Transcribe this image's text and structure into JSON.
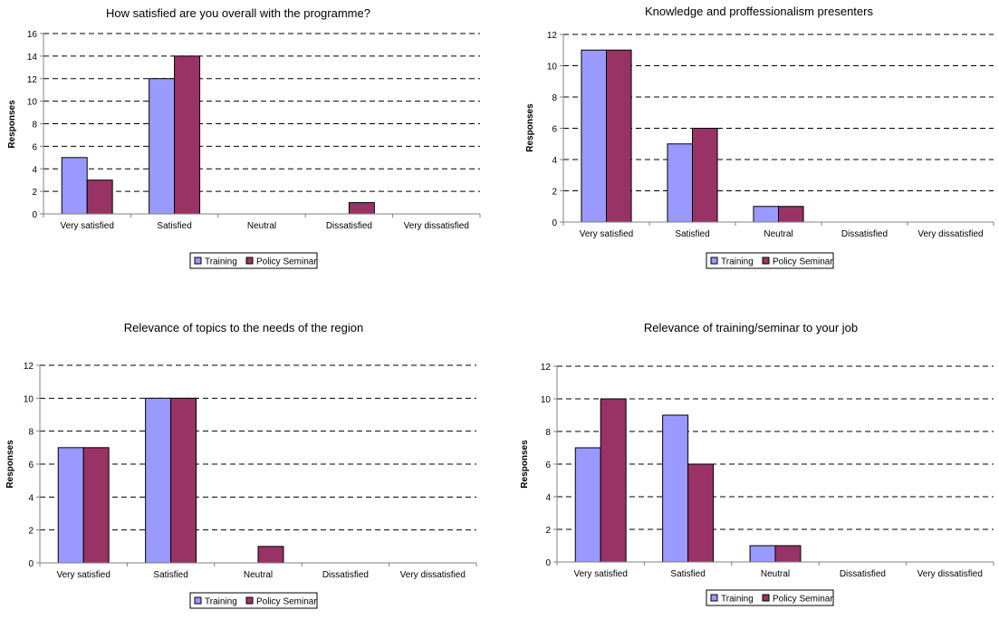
{
  "colors": {
    "training": "#9999ff",
    "policy_seminar": "#993366",
    "grid": "#000000",
    "axis": "#808080"
  },
  "chart_data": [
    {
      "type": "bar",
      "title": "How satisfied are you overall with the programme?",
      "ylabel": "Responses",
      "xlabel": "",
      "categories": [
        "Very satisfied",
        "Satisfied",
        "Neutral",
        "Dissatisfied",
        "Very dissatisfied"
      ],
      "ylim": [
        0,
        16
      ],
      "yticks": [
        0,
        2,
        4,
        6,
        8,
        10,
        12,
        14,
        16
      ],
      "grid": true,
      "legend": "bottom",
      "series": [
        {
          "name": "Training",
          "values": [
            5,
            12,
            0,
            0,
            0
          ]
        },
        {
          "name": "Policy Seminar",
          "values": [
            3,
            14,
            0,
            1,
            0
          ]
        }
      ]
    },
    {
      "type": "bar",
      "title": "Knowledge and proffessionalism presenters",
      "ylabel": "Responses",
      "xlabel": "",
      "categories": [
        "Very satisfied",
        "Satisfied",
        "Neutral",
        "Dissatisfied",
        "Very dissatisfied"
      ],
      "ylim": [
        0,
        12
      ],
      "yticks": [
        0,
        2,
        4,
        6,
        8,
        10,
        12
      ],
      "grid": true,
      "legend": "bottom",
      "series": [
        {
          "name": "Training",
          "values": [
            11,
            5,
            1,
            0,
            0
          ]
        },
        {
          "name": "Policy Seminar",
          "values": [
            11,
            6,
            1,
            0,
            0
          ]
        }
      ]
    },
    {
      "type": "bar",
      "title": "Relevance of topics to the needs of the region",
      "ylabel": "Responses",
      "xlabel": "",
      "categories": [
        "Very satisfied",
        "Satisfied",
        "Neutral",
        "Dissatisfied",
        "Very dissatisfied"
      ],
      "ylim": [
        0,
        12
      ],
      "yticks": [
        0,
        2,
        4,
        6,
        8,
        10,
        12
      ],
      "grid": true,
      "legend": "bottom",
      "series": [
        {
          "name": "Training",
          "values": [
            7,
            10,
            0,
            0,
            0
          ]
        },
        {
          "name": "Policy Seminar",
          "values": [
            7,
            10,
            1,
            0,
            0
          ]
        }
      ]
    },
    {
      "type": "bar",
      "title": "Relevance of training/seminar to your job",
      "ylabel": "Responses",
      "xlabel": "",
      "categories": [
        "Very satisfied",
        "Satisfied",
        "Neutral",
        "Dissatisfied",
        "Very dissatisfied"
      ],
      "ylim": [
        0,
        12
      ],
      "yticks": [
        0,
        2,
        4,
        6,
        8,
        10,
        12
      ],
      "grid": true,
      "legend": "bottom",
      "series": [
        {
          "name": "Training",
          "values": [
            7,
            9,
            1,
            0,
            0
          ]
        },
        {
          "name": "Policy Seminar",
          "values": [
            10,
            6,
            1,
            0,
            0
          ]
        }
      ]
    }
  ]
}
